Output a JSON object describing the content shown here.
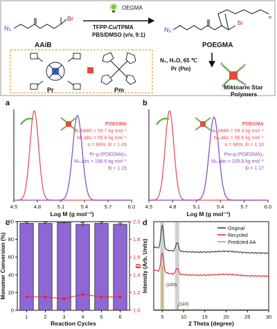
{
  "scheme": {
    "initiator_label": "AAiB",
    "product_label": "POEGMA",
    "monomer": "OEGMA",
    "catalyst_line": "TFPP-Cu",
    "catalyst_ligand": "/TPMA",
    "solvent_line": "PBS/DMSO (v/v, 9:1)",
    "click_conditions": "N₂, H₂O, 65 ℃",
    "click_reagent": "Pr (Pm)",
    "result_line1": "Miktoarm Star",
    "result_line2": "Polymers",
    "core1_label": "Pr",
    "core2_label": "Pm",
    "br_label": "Br",
    "n3_label": "N₃",
    "n_label": "n"
  },
  "panel_a": {
    "letter": "a",
    "annot_title": "POEGMA",
    "line1": "Mₙ,NMR = 59.7 kg mol⁻¹",
    "line2": "Mₙ,abs = 55.8 kg mol⁻¹",
    "line3": "α = 99%; Đ = 1.09",
    "prod_title": "Pr-g-(POEGMA)₄",
    "prod_line1": "Mₙ,abs = 198.6 kg mol⁻¹",
    "prod_line2": "Đ = 1.15",
    "xlabel": "Log M (g mol⁻¹)",
    "xticks": [
      "4.5",
      "4.8",
      "5.1",
      "5.4",
      "5.7",
      "6.0"
    ]
  },
  "panel_b": {
    "letter": "b",
    "annot_title": "POEGMA",
    "line1": "Mₙ,NMR = 59.3 kg mol⁻¹",
    "line2": "Mₙ,abs = 56.6 kg mol⁻¹",
    "line3": "α = 98%; Đ = 1.10",
    "prod_title": "Pm-g-(POEGMA)₄",
    "prod_line1": "Mₙ,abs = 205.8 kg mol⁻¹",
    "prod_line2": "Đ = 1.17",
    "xlabel": "Log M (g mol⁻¹)",
    "xticks": [
      "4.5",
      "4.8",
      "5.1",
      "5.4",
      "5.7",
      "6.0"
    ]
  },
  "panel_c": {
    "letter": "c",
    "ylabel_left": "Monomer Conversion (%)",
    "ylabel_right": "Đ",
    "xlabel": "Reaction Cycles",
    "yticks_left": [
      "0",
      "20",
      "40",
      "60",
      "80",
      "100"
    ],
    "yticks_right": [
      "1.0",
      "1.2",
      "1.4",
      "1.6",
      "1.8",
      "2.0"
    ],
    "xticks": [
      "1",
      "2",
      "3",
      "4",
      "5",
      "6"
    ]
  },
  "panel_d": {
    "letter": "d",
    "ylabel": "Intensity (Arb. Units)",
    "xlabel": "2 Theta (degree)",
    "xticks": [
      "5",
      "10",
      "15",
      "20",
      "25",
      "30"
    ],
    "legend": [
      "Original",
      "Recycled",
      "Predicted AA"
    ],
    "peak1": "(100)",
    "peak2": "(110)"
  },
  "colors": {
    "poegma": "#ef4d57",
    "product": "#8b4fc2",
    "bar": "#8e67d4",
    "dispersity": "#e3242b",
    "original": "#3a3a3a",
    "recycled": "#e3242b",
    "predicted": "#c8a23c",
    "highlight": "#bdbdbd"
  },
  "chart_data": [
    {
      "type": "line",
      "panel": "a",
      "xlabel": "Log M (g mol⁻¹)",
      "xlim": [
        4.5,
        6.0
      ],
      "series": [
        {
          "name": "POEGMA",
          "peak": 4.76,
          "width": 0.055,
          "height": 1.0
        },
        {
          "name": "Pr-g-(POEGMA)₄",
          "peak": 5.31,
          "width": 0.06,
          "height": 0.95
        }
      ]
    },
    {
      "type": "line",
      "panel": "b",
      "xlabel": "Log M (g mol⁻¹)",
      "xlim": [
        4.5,
        6.0
      ],
      "series": [
        {
          "name": "POEGMA",
          "peak": 4.76,
          "width": 0.055,
          "height": 1.0
        },
        {
          "name": "Pm-g-(POEGMA)₄",
          "peak": 5.32,
          "width": 0.06,
          "height": 0.93
        }
      ]
    },
    {
      "type": "bar",
      "panel": "c",
      "categories": [
        "1",
        "2",
        "3",
        "4",
        "5",
        "6"
      ],
      "xlabel": "Reaction Cycles",
      "ylabel": "Monomer Conversion (%)",
      "ylim": [
        0,
        100
      ],
      "series": [
        {
          "axis": "left",
          "values": [
            98,
            98,
            99,
            97,
            98,
            97
          ],
          "errors": [
            1.5,
            1.5,
            1,
            2,
            1.5,
            1.5
          ]
        },
        {
          "axis": "right",
          "ylabel": "Đ",
          "ylim": [
            1.0,
            2.0
          ],
          "values": [
            1.15,
            1.15,
            1.13,
            1.18,
            1.15,
            1.15
          ],
          "errors": [
            0.02,
            0.02,
            0.02,
            0.02,
            0.02,
            0.02
          ]
        }
      ]
    },
    {
      "type": "line",
      "panel": "d",
      "xlabel": "2 Theta (degree)",
      "ylabel": "Intensity (Arb. Units)",
      "xlim": [
        3,
        30
      ],
      "highlight_bands": [
        5,
        8.5
      ],
      "series": [
        {
          "name": "Original",
          "baseline": 0.66,
          "peaks": [
            [
              5.0,
              0.27
            ],
            [
              8.5,
              0.1
            ]
          ]
        },
        {
          "name": "Recycled",
          "baseline": 0.4,
          "peaks": [
            [
              5.0,
              0.22
            ],
            [
              8.5,
              0.07
            ]
          ]
        },
        {
          "name": "Predicted AA",
          "baseline": 0.0,
          "sticks": [
            [
              5.0,
              0.5
            ],
            [
              8.6,
              0.06
            ],
            [
              10.0,
              0.02
            ],
            [
              13.2,
              0.02
            ]
          ]
        }
      ]
    }
  ]
}
